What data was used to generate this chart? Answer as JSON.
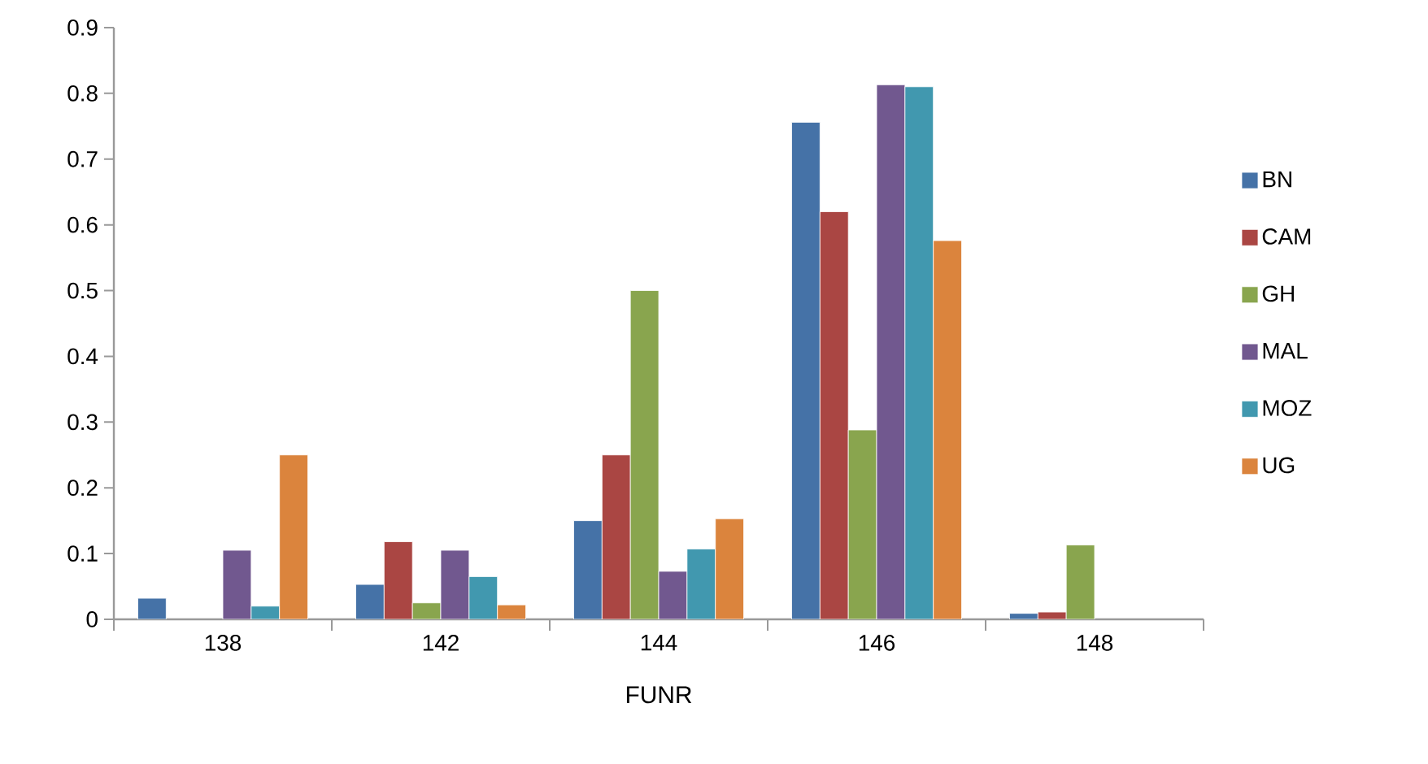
{
  "chart_data": {
    "type": "bar",
    "xlabel": "FUNR",
    "categories": [
      "138",
      "142",
      "144",
      "146",
      "148"
    ],
    "series": [
      {
        "name": "BN",
        "color": "#4572a7",
        "values": [
          0.032,
          0.053,
          0.15,
          0.756,
          0.009
        ]
      },
      {
        "name": "CAM",
        "color": "#aa4643",
        "values": [
          null,
          0.118,
          0.25,
          0.62,
          0.011
        ]
      },
      {
        "name": "GH",
        "color": "#89a54e",
        "values": [
          null,
          0.025,
          0.5,
          0.288,
          0.113
        ]
      },
      {
        "name": "MAL",
        "color": "#71588f",
        "values": [
          0.105,
          0.105,
          0.073,
          0.813,
          null
        ]
      },
      {
        "name": "MOZ",
        "color": "#4198af",
        "values": [
          0.02,
          0.065,
          0.107,
          0.81,
          null
        ]
      },
      {
        "name": "UG",
        "color": "#db843d",
        "values": [
          0.25,
          0.022,
          0.153,
          0.576,
          null
        ]
      }
    ],
    "ylim": [
      0,
      0.9
    ],
    "yticks": [
      0,
      0.1,
      0.2,
      0.3,
      0.4,
      0.5,
      0.6,
      0.7,
      0.8,
      0.9
    ],
    "grid": false,
    "legend": "right"
  }
}
